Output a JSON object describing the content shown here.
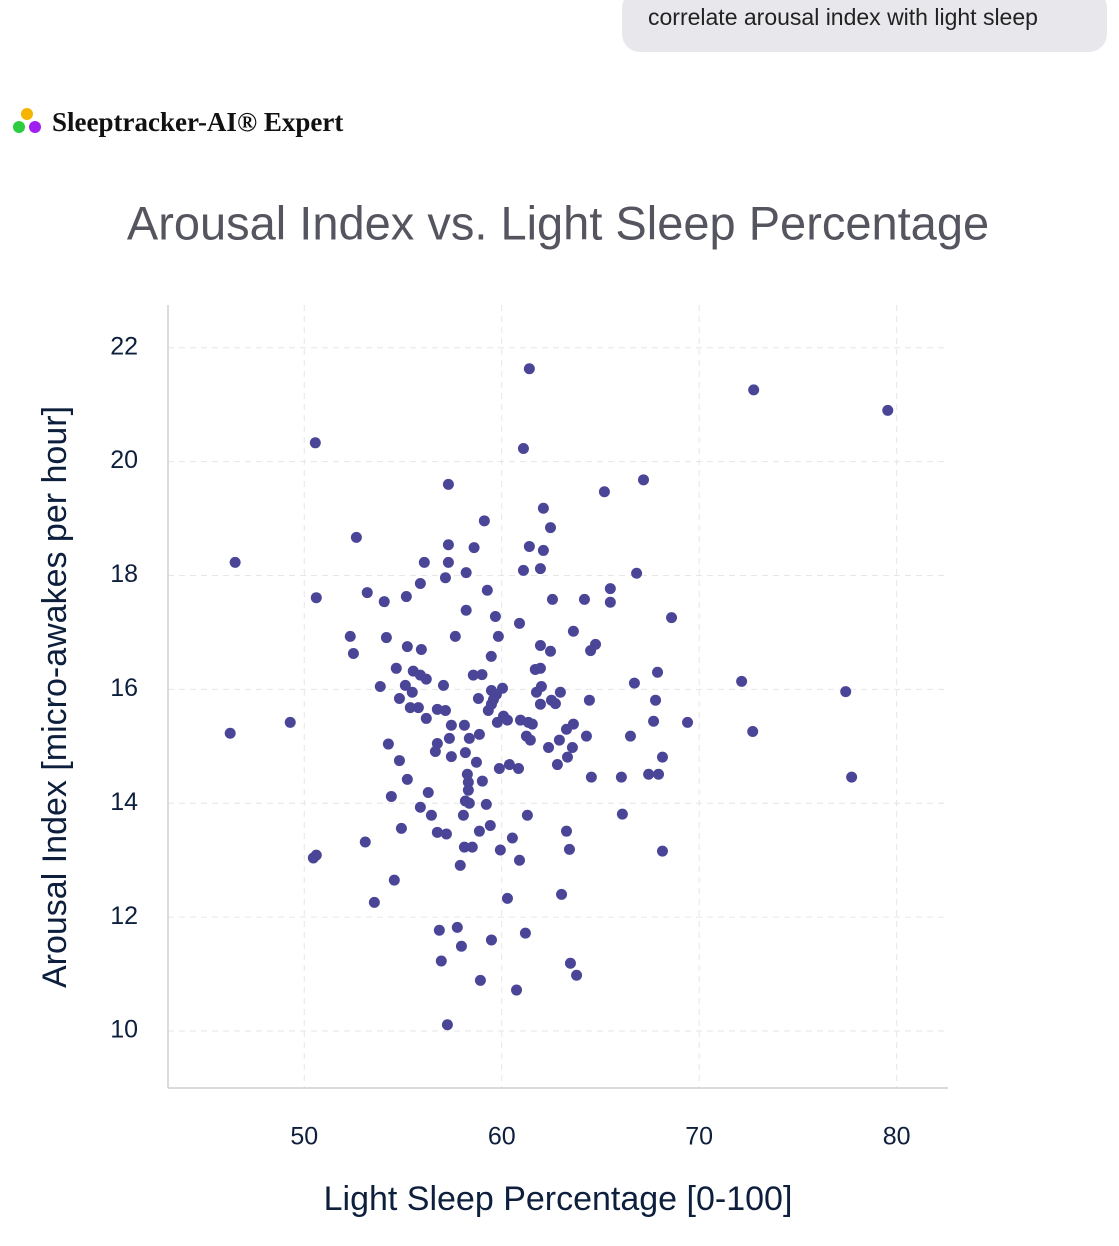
{
  "chat": {
    "user_message": "correlate arousal index with light sleep"
  },
  "app": {
    "name": "Sleeptracker-AI® Expert"
  },
  "chart_data": {
    "type": "scatter",
    "title": "Arousal Index vs. Light Sleep Percentage",
    "x_label": "Light Sleep Percentage [0-100]",
    "y_label": "Arousal Index [micro-awakes per hour]",
    "color": "#4b4598",
    "grid": true,
    "xlim": [
      43.1,
      82.6
    ],
    "ylim": [
      9,
      22.75
    ],
    "xticks": [
      50,
      60,
      70,
      80
    ],
    "yticks": [
      10,
      12,
      14,
      16,
      18,
      20,
      22
    ],
    "x": [
      61.4,
      72.76,
      79.55,
      50.56,
      61.1,
      67.18,
      57.3,
      65.2,
      59.12,
      62.11,
      62.47,
      52.64,
      46.5,
      57.3,
      58.6,
      61.4,
      62.11,
      56.08,
      57.3,
      58.2,
      61.1,
      61.96,
      66.83,
      57.15,
      55.88,
      65.5,
      59.27,
      53.19,
      50.61,
      55.17,
      62.57,
      64.19,
      54.05,
      65.5,
      58.2,
      59.68,
      68.6,
      60.9,
      63.63,
      59.83,
      52.33,
      57.65,
      54.16,
      64.75,
      61.96,
      55.22,
      64.5,
      55.93,
      62.47,
      52.49,
      59.47,
      61.96,
      61.7,
      54.66,
      55.52,
      55.88,
      58.56,
      59.0,
      67.89,
      56.18,
      66.72,
      72.15,
      55.12,
      53.85,
      57.05,
      62.01,
      60.04,
      59.48,
      59.73,
      61.76,
      62.97,
      55.47,
      77.42,
      58.82,
      54.82,
      59.58,
      64.44,
      67.79,
      62.52,
      62.72,
      61.96,
      59.48,
      55.37,
      55.78,
      56.74,
      57.15,
      59.32,
      60.09,
      60.29,
      60.95,
      56.18,
      59.78,
      61.35,
      49.29,
      67.69,
      69.41,
      61.55,
      63.63,
      57.45,
      58.11,
      63.28,
      46.25,
      58.87,
      72.71,
      66.52,
      64.29,
      61.25,
      58.36,
      57.35,
      61.45,
      62.92,
      56.74,
      54.26,
      63.58,
      62.37,
      56.64,
      58.16,
      57.45,
      63.33,
      68.14,
      54.82,
      62.82,
      60.39,
      58.72,
      59.88,
      60.85,
      58.26,
      67.44,
      67.94,
      64.54,
      66.06,
      77.72,
      55.22,
      58.31,
      59.02,
      56.28,
      54.41,
      58.31,
      58.16,
      58.36,
      59.22,
      55.88,
      56.44,
      58.06,
      61.3,
      66.11,
      59.42,
      54.92,
      56.74,
      57.2,
      58.87,
      63.28,
      60.54,
      53.09,
      58.11,
      58.51,
      59.93,
      63.43,
      68.14,
      50.61,
      50.46,
      60.9,
      57.9,
      54.56,
      63.03,
      60.29,
      53.55,
      56.84,
      57.75,
      61.2,
      59.48,
      57.96,
      56.94,
      63.48,
      63.79,
      58.92,
      60.75,
      57.25
    ],
    "values": [
      21.63,
      21.26,
      20.9,
      20.33,
      20.23,
      19.68,
      19.6,
      19.47,
      18.96,
      19.18,
      18.84,
      18.67,
      18.23,
      18.54,
      18.49,
      18.51,
      18.44,
      18.23,
      18.23,
      18.05,
      18.09,
      18.12,
      18.04,
      17.96,
      17.86,
      17.77,
      17.74,
      17.7,
      17.61,
      17.63,
      17.58,
      17.58,
      17.54,
      17.53,
      17.39,
      17.28,
      17.26,
      17.16,
      17.02,
      16.93,
      16.93,
      16.93,
      16.91,
      16.79,
      16.77,
      16.75,
      16.68,
      16.7,
      16.67,
      16.63,
      16.58,
      16.37,
      16.35,
      16.37,
      16.32,
      16.25,
      16.25,
      16.26,
      16.3,
      16.18,
      16.11,
      16.14,
      16.07,
      16.05,
      16.07,
      16.05,
      16.02,
      15.98,
      15.91,
      15.95,
      15.95,
      15.95,
      15.96,
      15.84,
      15.84,
      15.82,
      15.81,
      15.81,
      15.81,
      15.75,
      15.74,
      15.74,
      15.68,
      15.68,
      15.65,
      15.63,
      15.63,
      15.53,
      15.46,
      15.46,
      15.49,
      15.42,
      15.42,
      15.42,
      15.44,
      15.42,
      15.39,
      15.39,
      15.37,
      15.37,
      15.3,
      15.23,
      15.21,
      15.26,
      15.18,
      15.18,
      15.18,
      15.14,
      15.14,
      15.11,
      15.11,
      15.05,
      15.04,
      14.98,
      14.98,
      14.91,
      14.89,
      14.82,
      14.81,
      14.81,
      14.75,
      14.68,
      14.68,
      14.72,
      14.61,
      14.61,
      14.51,
      14.51,
      14.51,
      14.46,
      14.46,
      14.46,
      14.42,
      14.37,
      14.39,
      14.19,
      14.12,
      14.23,
      14.04,
      14.0,
      13.98,
      13.93,
      13.79,
      13.79,
      13.79,
      13.81,
      13.61,
      13.56,
      13.49,
      13.46,
      13.51,
      13.51,
      13.39,
      13.32,
      13.23,
      13.23,
      13.18,
      13.19,
      13.16,
      13.09,
      13.04,
      13.0,
      12.91,
      12.65,
      12.4,
      12.33,
      12.26,
      11.77,
      11.82,
      11.72,
      11.6,
      11.49,
      11.23,
      11.19,
      10.98,
      10.89,
      10.72,
      10.11
    ]
  }
}
